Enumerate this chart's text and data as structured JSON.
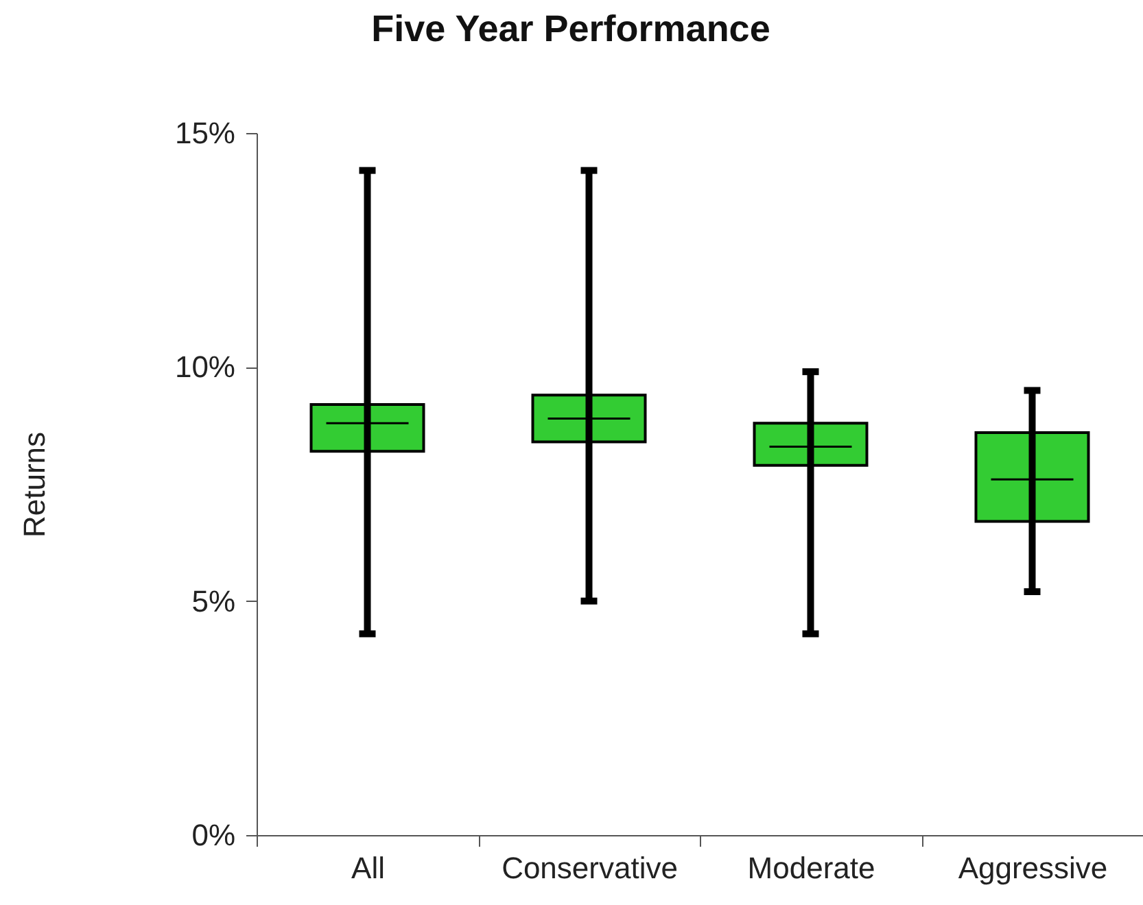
{
  "chart_data": {
    "type": "box",
    "title": "Five Year Performance",
    "ylabel": "Returns",
    "categories": [
      "All",
      "Conservative",
      "Moderate",
      "Aggressive"
    ],
    "color": "#33cc33",
    "boxes": [
      {
        "low": 4.3,
        "q1": 8.2,
        "median": 8.8,
        "q3": 9.2,
        "high": 14.2
      },
      {
        "low": 5.0,
        "q1": 8.4,
        "median": 8.9,
        "q3": 9.4,
        "high": 14.2
      },
      {
        "low": 4.3,
        "q1": 7.9,
        "median": 8.3,
        "q3": 8.8,
        "high": 9.9
      },
      {
        "low": 5.2,
        "q1": 6.7,
        "median": 7.6,
        "q3": 8.6,
        "high": 9.5
      }
    ],
    "ylim": [
      0,
      15
    ],
    "yticks": [
      {
        "value": 0,
        "label": "0%"
      },
      {
        "value": 5,
        "label": "5%"
      },
      {
        "value": 10,
        "label": "10%"
      },
      {
        "value": 15,
        "label": "15%"
      }
    ],
    "grid": false
  }
}
